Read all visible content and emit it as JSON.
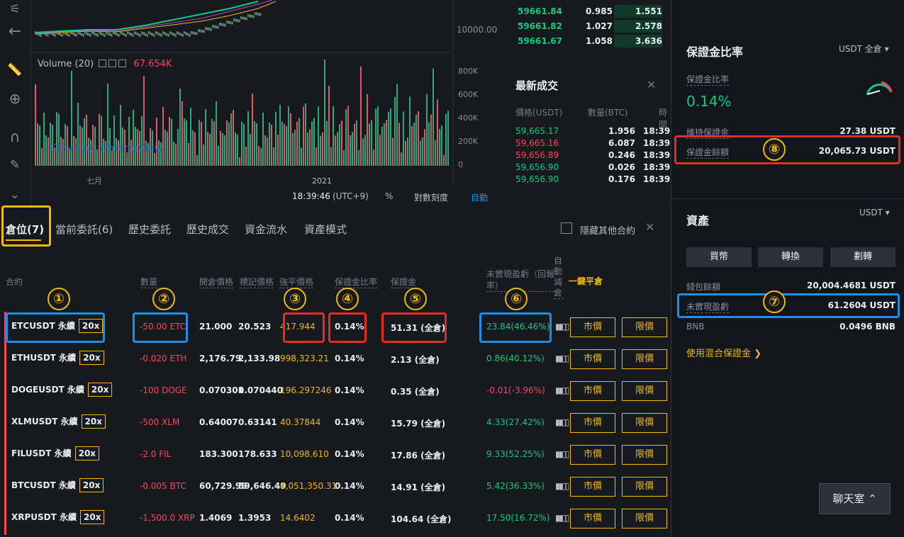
{
  "chart": {
    "y_price": "10000.00",
    "vol_ticks": [
      "800K",
      "600K",
      "400K",
      "200K",
      "0"
    ],
    "volume_label": "Volume (20)",
    "volume_value": "67.654K",
    "watermark": "Chart by TradingView",
    "x_labels": [
      "七月",
      "2021"
    ],
    "time": "18:39:46",
    "tz": "(UTC+9)",
    "pct": "%",
    "log": "對數刻度",
    "auto": "自動"
  },
  "orderbook": {
    "rows": [
      [
        "59661.84",
        "0.985",
        "1.551"
      ],
      [
        "59661.82",
        "1.027",
        "2.578"
      ],
      [
        "59661.67",
        "1.058",
        "3.636"
      ]
    ]
  },
  "trades": {
    "title": "最新成交",
    "headers": [
      "價格(USDT)",
      "數量(BTC)",
      "時間"
    ],
    "rows": [
      {
        "p": "59,665.17",
        "q": "1.956",
        "t": "18:39",
        "side": "buy"
      },
      {
        "p": "59,665.16",
        "q": "6.087",
        "t": "18:39",
        "side": "sell"
      },
      {
        "p": "59,656.89",
        "q": "0.246",
        "t": "18:39",
        "side": "sell"
      },
      {
        "p": "59,656.90",
        "q": "0.026",
        "t": "18:39",
        "side": "buy"
      },
      {
        "p": "59,656.90",
        "q": "0.176",
        "t": "18:39",
        "side": "buy"
      }
    ]
  },
  "tabs": {
    "items": [
      "倉位(7)",
      "當前委託(6)",
      "歷史委託",
      "歷史成交",
      "資金流水",
      "資產模式"
    ],
    "hide_label": "隱藏其他合約"
  },
  "headers": [
    "合約",
    "數量",
    "開倉價格",
    "標記價格",
    "強平價格",
    "保證金比率",
    "保證金",
    "未實現盈虧（回報率）",
    "自動減倉",
    "一鍵平倉"
  ],
  "positions": [
    {
      "sym": "ETCUSDT 永續",
      "lev": "20x",
      "qty": "-50.00 ETC",
      "entry": "21.000",
      "mark": "20.523",
      "liq": "417.944",
      "ratio": "0.14%",
      "margin": "51.31 (全倉)",
      "pnl": "23.84(46.46%)",
      "pos": true
    },
    {
      "sym": "ETHUSDT 永續",
      "lev": "20x",
      "qty": "-0.020 ETH",
      "entry": "2,176.79",
      "mark": "2,133.98",
      "liq": "998,323.21",
      "ratio": "0.14%",
      "margin": "2.13 (全倉)",
      "pnl": "0.86(40.12%)",
      "pos": true
    },
    {
      "sym": "DOGEUSDT 永續",
      "lev": "20x",
      "qty": "-100 DOGE",
      "entry": "0.070301",
      "mark": "0.070440",
      "liq": "196.297246",
      "ratio": "0.14%",
      "margin": "0.35 (全倉)",
      "pnl": "-0.01(-3.96%)",
      "pos": false
    },
    {
      "sym": "XLMUSDT 永續",
      "lev": "20x",
      "qty": "-500 XLM",
      "entry": "0.64007",
      "mark": "0.63141",
      "liq": "40.37844",
      "ratio": "0.14%",
      "margin": "15.79 (全倉)",
      "pnl": "4.33(27.42%)",
      "pos": true
    },
    {
      "sym": "FILUSDT 永續",
      "lev": "20x",
      "qty": "-2.0 FIL",
      "entry": "183.300",
      "mark": "178.633",
      "liq": "10,098.610",
      "ratio": "0.14%",
      "margin": "17.86 (全倉)",
      "pnl": "9.33(52.25%)",
      "pos": true
    },
    {
      "sym": "BTCUSDT 永續",
      "lev": "20x",
      "qty": "-0.005 BTC",
      "entry": "60,729.99",
      "mark": "59,646.49",
      "liq": "4,051,350.31",
      "ratio": "0.14%",
      "margin": "14.91 (全倉)",
      "pnl": "5.42(36.33%)",
      "pos": true
    },
    {
      "sym": "XRPUSDT 永續",
      "lev": "20x",
      "qty": "-1,500.0 XRP",
      "entry": "1.4069",
      "mark": "1.3953",
      "liq": "14.6402",
      "ratio": "0.14%",
      "margin": "104.64 (全倉)",
      "pnl": "17.50(16.72%)",
      "pos": true
    }
  ],
  "btn_market": "市價",
  "btn_limit": "限價",
  "right": {
    "title": "保證金比率",
    "mode": "USDT 全倉",
    "ratio_label": "保證金比率",
    "ratio_value": "0.14%",
    "maint_label": "維持保證金",
    "maint_value": "27.38 USDT",
    "bal_label": "保證金餘額",
    "bal_value": "20,065.73 USDT",
    "assets_title": "資產",
    "assets_cur": "USDT",
    "buttons": [
      "買幣",
      "轉換",
      "劃轉"
    ],
    "wallet_label": "錢包餘額",
    "wallet_value": "20,004.4681 USDT",
    "unreal_label": "未實現盈虧",
    "unreal_value": "61.2604 USDT",
    "bnb_label": "BNB",
    "bnb_value": "0.0496 BNB",
    "mixed": "使用混合保證金",
    "chat": "聊天室"
  },
  "markers": [
    "①",
    "②",
    "③",
    "④",
    "⑤",
    "⑥",
    "⑦",
    "⑧"
  ],
  "colors": {
    "accent": "#f0b90b",
    "buy": "#0ecb81",
    "sell": "#f6465d",
    "red_box": "#e22b21",
    "blue_box": "#1d8fe8"
  }
}
